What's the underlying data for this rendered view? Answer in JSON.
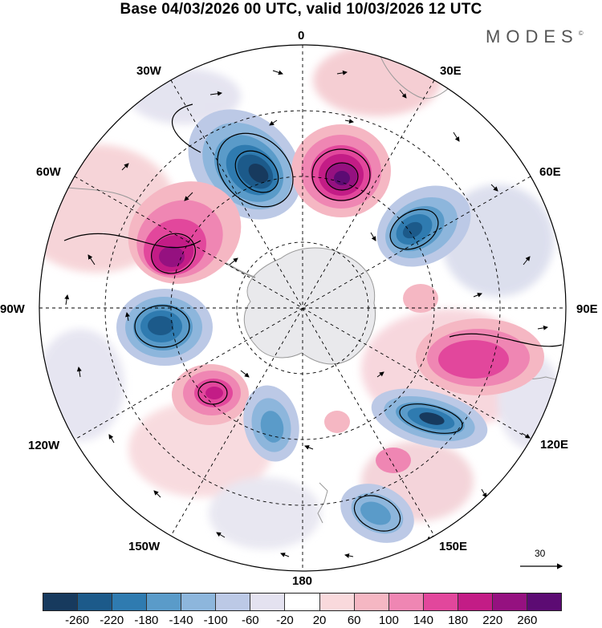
{
  "title": "Base 04/03/2026 00 UTC, valid 10/03/2026 12 UTC",
  "brand": {
    "name": "MODES",
    "mark": "©"
  },
  "longitude_labels": {
    "lon_0": "0",
    "lon_30e": "30E",
    "lon_60e": "60E",
    "lon_90e": "90E",
    "lon_120e": "120E",
    "lon_150e": "150E",
    "lon_180": "180",
    "lon_150w": "150W",
    "lon_120w": "120W",
    "lon_90w": "90W",
    "lon_60w": "60W",
    "lon_30w": "30W"
  },
  "reference_vector": {
    "label": "30"
  },
  "colorbar": {
    "colors": [
      "#173a5e",
      "#1c5a8a",
      "#2f7bb0",
      "#5a9bc9",
      "#8db6dc",
      "#bcc9e6",
      "#e4e2f0",
      "#ffffff",
      "#f9d9dc",
      "#f5b7c3",
      "#ef86b3",
      "#e2479c",
      "#c31c86",
      "#951180",
      "#5c0b73"
    ],
    "ticks": [
      "-260",
      "-220",
      "-180",
      "-140",
      "-100",
      "-60",
      "-20",
      "20",
      "60",
      "100",
      "140",
      "180",
      "220",
      "260"
    ]
  },
  "anomaly_centres": [
    {
      "type": "low",
      "lon": -15,
      "value": -240
    },
    {
      "type": "high",
      "lon": 15,
      "value": 250
    },
    {
      "type": "low",
      "lon": 55,
      "value": -200
    },
    {
      "type": "high",
      "lon": -50,
      "value": 230
    },
    {
      "type": "low",
      "lon": -90,
      "value": -210
    },
    {
      "type": "high",
      "lon": 95,
      "value": 170
    },
    {
      "type": "low",
      "lon": 115,
      "value": -220
    },
    {
      "type": "high",
      "lon": -125,
      "value": 170
    },
    {
      "type": "low",
      "lon": -155,
      "value": -120
    },
    {
      "type": "low",
      "lon": 150,
      "value": -120
    }
  ]
}
